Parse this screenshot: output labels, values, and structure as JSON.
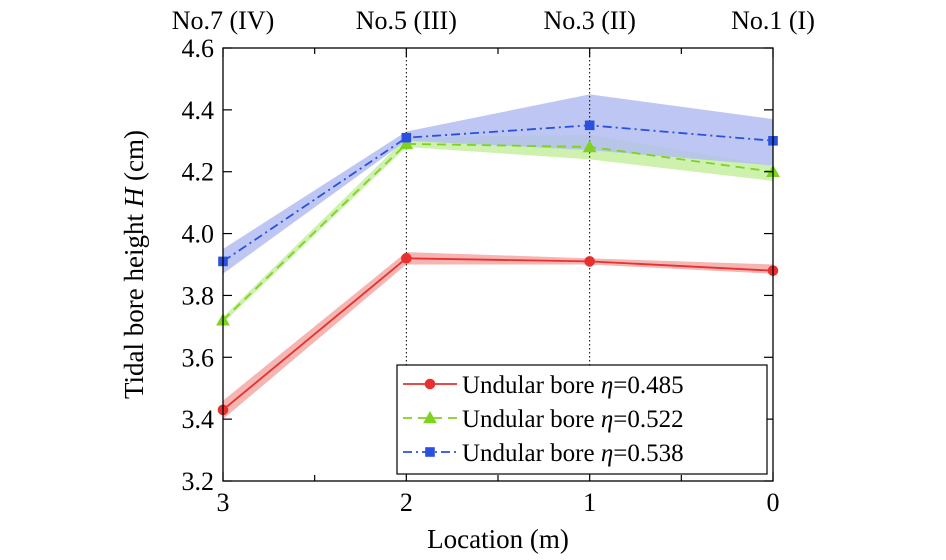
{
  "chart_data": {
    "type": "line",
    "xlabel": "Location (m)",
    "ylabel_prefix": "Tidal bore height ",
    "ylabel_var": "H",
    "ylabel_suffix": " (cm)",
    "x": [
      3,
      2,
      1,
      0
    ],
    "xlim": [
      3,
      0
    ],
    "x_ticks": [
      3,
      2,
      1,
      0
    ],
    "ylim": [
      3.2,
      4.6
    ],
    "y_ticks": [
      3.2,
      3.4,
      3.6,
      3.8,
      4.0,
      4.2,
      4.4,
      4.6
    ],
    "y_tick_labels": [
      "3.2",
      "3.4",
      "3.6",
      "3.8",
      "4.0",
      "4.2",
      "4.4",
      "4.6"
    ],
    "top_axis": {
      "positions": [
        3,
        2,
        1,
        0
      ],
      "labels": [
        "No.7 (IV)",
        "No.5 (III)",
        "No.3 (II)",
        "No.1 (I)"
      ]
    },
    "reference_lines_x": [
      2,
      1
    ],
    "legend_position": "bottom-right",
    "series": [
      {
        "name_prefix": "Undular bore ",
        "eta_symbol": "η",
        "eta_value": "=0.485",
        "values": [
          3.43,
          3.92,
          3.91,
          3.88
        ],
        "band_upper": [
          3.46,
          3.94,
          3.92,
          3.9
        ],
        "band_lower": [
          3.4,
          3.9,
          3.9,
          3.87
        ],
        "color": "#e8312e",
        "band_color": "#f2a8a6",
        "dash": "",
        "marker": "circle"
      },
      {
        "name_prefix": "Undular bore ",
        "eta_symbol": "η",
        "eta_value": "=0.522",
        "values": [
          3.72,
          4.29,
          4.28,
          4.2
        ],
        "band_upper": [
          3.73,
          4.31,
          4.32,
          4.22
        ],
        "band_lower": [
          3.71,
          4.28,
          4.24,
          4.17
        ],
        "color": "#7ed321",
        "band_color": "#c6efa0",
        "dash": "9 6",
        "marker": "triangle"
      },
      {
        "name_prefix": "Undular bore ",
        "eta_symbol": "η",
        "eta_value": "=0.538",
        "values": [
          3.91,
          4.31,
          4.35,
          4.3
        ],
        "band_upper": [
          3.95,
          4.33,
          4.45,
          4.37
        ],
        "band_lower": [
          3.87,
          4.3,
          4.27,
          4.22
        ],
        "color": "#2a50e0",
        "band_color": "#b3bdf1",
        "dash": "9 4 2 4",
        "marker": "square"
      }
    ]
  }
}
